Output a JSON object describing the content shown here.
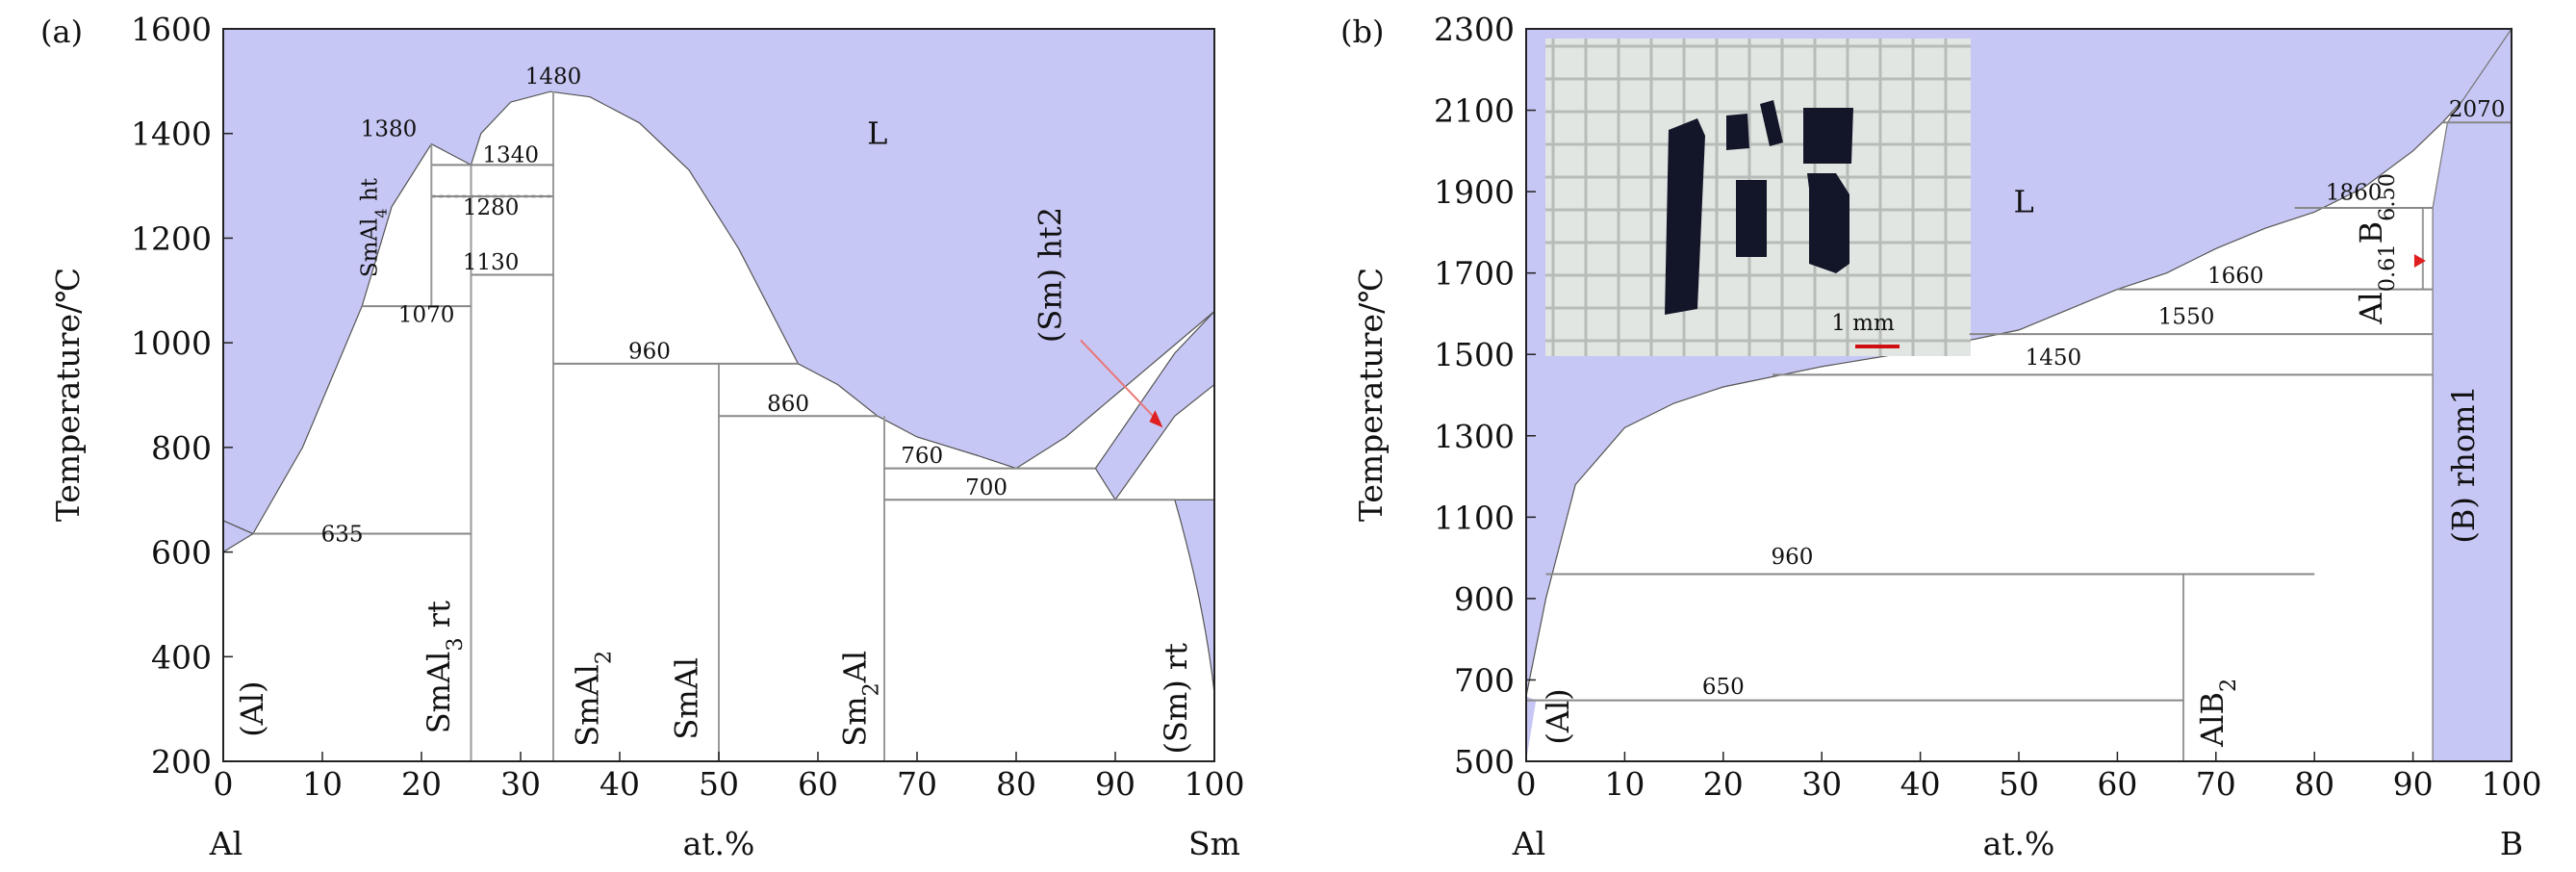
{
  "chart_data": [
    {
      "type": "phase-diagram",
      "panel_label": "(a)",
      "xlabel": "at.%",
      "ylabel": "Temperature/℃",
      "left_element": "Al",
      "right_element": "Sm",
      "xlim": [
        0,
        100
      ],
      "ylim": [
        200,
        1600
      ],
      "xticks": [
        0,
        10,
        20,
        30,
        40,
        50,
        60,
        70,
        80,
        90,
        100
      ],
      "yticks": [
        200,
        400,
        600,
        800,
        1000,
        1200,
        1400,
        1600
      ],
      "liquidus": [
        [
          0,
          660
        ],
        [
          3,
          635
        ],
        [
          8,
          800
        ],
        [
          14,
          1070
        ],
        [
          17,
          1260
        ],
        [
          21,
          1380
        ],
        [
          23,
          1360
        ],
        [
          25,
          1340
        ],
        [
          26,
          1400
        ],
        [
          29,
          1460
        ],
        [
          33,
          1480
        ],
        [
          37,
          1470
        ],
        [
          42,
          1420
        ],
        [
          47,
          1330
        ],
        [
          52,
          1180
        ],
        [
          58,
          960
        ],
        [
          62,
          920
        ],
        [
          66,
          860
        ],
        [
          70,
          820
        ],
        [
          76,
          785
        ],
        [
          80,
          760
        ],
        [
          85,
          820
        ],
        [
          90,
          900
        ],
        [
          95,
          980
        ],
        [
          100,
          1060
        ]
      ],
      "isotherms": [
        {
          "label": "635",
          "value": 635,
          "x": [
            3,
            25
          ]
        },
        {
          "label": "1070",
          "value": 1070,
          "x": [
            14,
            25
          ]
        },
        {
          "label": "1130",
          "value": 1130,
          "x": [
            25,
            33.3
          ]
        },
        {
          "label": "1280",
          "value": 1280,
          "x": [
            21,
            33.3
          ]
        },
        {
          "label": "1340",
          "value": 1340,
          "x": [
            21,
            33.3
          ]
        },
        {
          "label": "1380",
          "value": 1380
        },
        {
          "label": "1480",
          "value": 1480
        },
        {
          "label": "960",
          "value": 960,
          "x": [
            33.3,
            58
          ]
        },
        {
          "label": "860",
          "value": 860,
          "x": [
            50,
            66
          ]
        },
        {
          "label": "760",
          "value": 760,
          "x": [
            66.7,
            88
          ]
        },
        {
          "label": "700",
          "value": 700,
          "x": [
            66.7,
            96
          ]
        }
      ],
      "phases": [
        {
          "label": "L",
          "x": 66,
          "y": 1380
        },
        {
          "label": "(Al)",
          "x": 4,
          "y": 300
        },
        {
          "label": "SmAl4 ht",
          "x": 15,
          "y": 1220
        },
        {
          "label": "SmAl3 rt",
          "x": 22,
          "y": 400
        },
        {
          "label": "SmAl2",
          "x": 37,
          "y": 330
        },
        {
          "label": "SmAl",
          "x": 47,
          "y": 330
        },
        {
          "label": "Sm2Al",
          "x": 64,
          "y": 330
        },
        {
          "label": "(Sm) ht2",
          "x": 84,
          "y": 1130
        },
        {
          "label": "(Sm) rt",
          "x": 97,
          "y": 330
        }
      ]
    },
    {
      "type": "phase-diagram",
      "panel_label": "(b)",
      "xlabel": "at.%",
      "ylabel": "Temperature/℃",
      "left_element": "Al",
      "right_element": "B",
      "xlim": [
        0,
        100
      ],
      "ylim": [
        500,
        2300
      ],
      "xticks": [
        0,
        10,
        20,
        30,
        40,
        50,
        60,
        70,
        80,
        90,
        100
      ],
      "yticks": [
        500,
        700,
        900,
        1100,
        1300,
        1500,
        1700,
        1900,
        2100,
        2300
      ],
      "liquidus": [
        [
          0,
          660
        ],
        [
          2,
          900
        ],
        [
          5,
          1180
        ],
        [
          10,
          1320
        ],
        [
          15,
          1380
        ],
        [
          20,
          1420
        ],
        [
          30,
          1470
        ],
        [
          40,
          1510
        ],
        [
          50,
          1560
        ],
        [
          55,
          1610
        ],
        [
          60,
          1660
        ],
        [
          65,
          1700
        ],
        [
          70,
          1760
        ],
        [
          75,
          1810
        ],
        [
          80,
          1850
        ],
        [
          85,
          1910
        ],
        [
          90,
          2000
        ],
        [
          93,
          2070
        ],
        [
          96,
          2150
        ],
        [
          100,
          2300
        ]
      ],
      "isotherms": [
        {
          "label": "650",
          "value": 650,
          "x": [
            0,
            66.7
          ]
        },
        {
          "label": "960",
          "value": 960,
          "x": [
            2,
            80
          ]
        },
        {
          "label": "1450",
          "value": 1450,
          "x": [
            25,
            92
          ]
        },
        {
          "label": "1550",
          "value": 1550,
          "x": [
            45,
            92
          ]
        },
        {
          "label": "1660",
          "value": 1660,
          "x": [
            60,
            92
          ]
        },
        {
          "label": "1860",
          "value": 1860,
          "x": [
            78,
            92
          ]
        },
        {
          "label": "2070",
          "value": 2070,
          "x": [
            93,
            100
          ]
        }
      ],
      "phases": [
        {
          "label": "L",
          "x": 50,
          "y": 1950
        },
        {
          "label": "(Al)",
          "x": 4,
          "y": 610
        },
        {
          "label": "AlB2",
          "x": 70,
          "y": 650
        },
        {
          "label": "Al0.61B6.50",
          "x": 86,
          "y": 1730
        },
        {
          "label": "(B) rhom1",
          "x": 96,
          "y": 1250
        }
      ],
      "inset": {
        "scale_bar": "1 mm"
      }
    }
  ]
}
